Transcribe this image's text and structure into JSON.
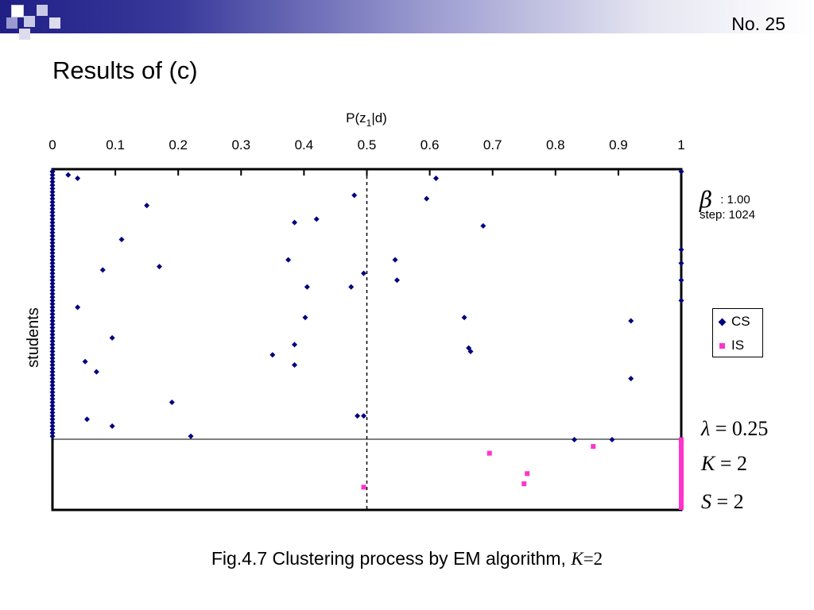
{
  "slide": {
    "number": "No. 25",
    "title": "Results of (c)",
    "caption_text": "Fig.4.7 Clustering process by EM algorithm, ",
    "caption_k": "K",
    "caption_eq": "=2"
  },
  "params": {
    "beta_symbol": "β",
    "beta_value": ": 1.00",
    "step_label": "step: 1024",
    "lambda_symbol": "λ",
    "lambda_value": "= 0.25",
    "k_symbol": "K",
    "k_value": "= 2",
    "s_symbol": "S",
    "s_value": "= 2"
  },
  "colors": {
    "cs": "#000080",
    "is": "#ff33cc",
    "accent": "#1f1f86"
  },
  "chart_data": {
    "type": "scatter",
    "xlabel": "P(z1|d)",
    "ylabel": "students",
    "xlim": [
      0,
      1
    ],
    "xticks": [
      "0",
      "0.1",
      "0.2",
      "0.3",
      "0.4",
      "0.5",
      "0.6",
      "0.7",
      "0.8",
      "0.9",
      "1"
    ],
    "reference_line_x": 0.5,
    "legend_position": "right",
    "legend": [
      {
        "name": "CS",
        "marker": "diamond",
        "color": "#000080"
      },
      {
        "name": "IS",
        "marker": "square",
        "color": "#ff33cc"
      }
    ],
    "group_sizes": {
      "CS": 79,
      "IS": 21
    },
    "series": [
      {
        "name": "CS",
        "points": [
          [
            0,
            1
          ],
          [
            0.025,
            2
          ],
          [
            0.04,
            3
          ],
          [
            0.61,
            3
          ],
          [
            0.48,
            8
          ],
          [
            0.595,
            9
          ],
          [
            0.15,
            11
          ],
          [
            0.42,
            15
          ],
          [
            0.385,
            16
          ],
          [
            0.685,
            17
          ],
          [
            0.11,
            21
          ],
          [
            0.545,
            27
          ],
          [
            0.375,
            27
          ],
          [
            0.17,
            29
          ],
          [
            0.08,
            30
          ],
          [
            0.495,
            31
          ],
          [
            0.548,
            33
          ],
          [
            0.405,
            35
          ],
          [
            0.475,
            35
          ],
          [
            0.04,
            41
          ],
          [
            0.655,
            44
          ],
          [
            0.402,
            44
          ],
          [
            0.92,
            45
          ],
          [
            0.095,
            50
          ],
          [
            0.385,
            52
          ],
          [
            0.662,
            53
          ],
          [
            0.665,
            54
          ],
          [
            0.35,
            55
          ],
          [
            0.052,
            57
          ],
          [
            0.385,
            58
          ],
          [
            0.07,
            60
          ],
          [
            0.92,
            62
          ],
          [
            0.19,
            69
          ],
          [
            0.485,
            73
          ],
          [
            0.495,
            73
          ],
          [
            0.055,
            74
          ],
          [
            0.095,
            76
          ],
          [
            0.22,
            79
          ],
          [
            0.83,
            80
          ],
          [
            0.89,
            80
          ],
          [
            1,
            1
          ],
          [
            1,
            24
          ],
          [
            1,
            28
          ],
          [
            1,
            33
          ],
          [
            1,
            39
          ]
        ],
        "points_at_x0": [
          1,
          79
        ]
      },
      {
        "name": "IS",
        "points": [
          [
            0.695,
            84
          ],
          [
            0.86,
            82
          ],
          [
            0.755,
            90
          ],
          [
            0.75,
            93
          ],
          [
            0.495,
            94
          ]
        ],
        "points_at_x1": [
          80,
          100
        ]
      }
    ]
  }
}
